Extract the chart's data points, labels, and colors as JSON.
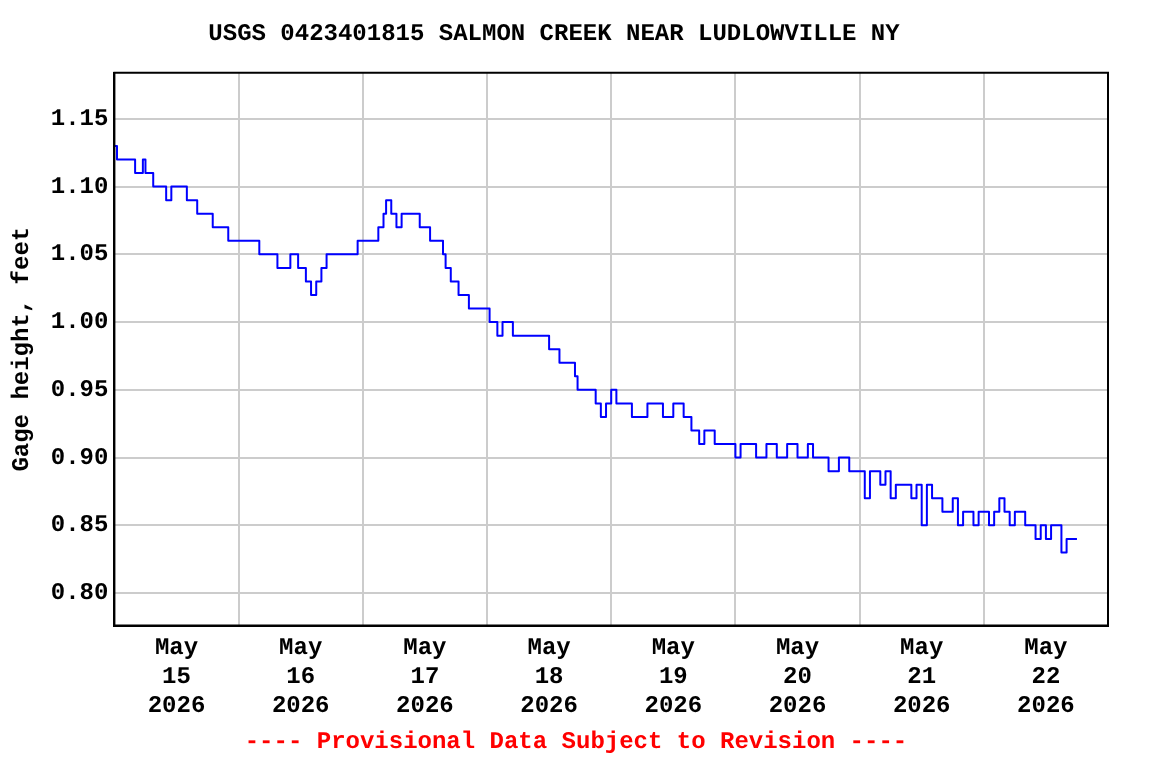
{
  "chart_data": {
    "type": "step",
    "title": "USGS 0423401815 SALMON CREEK NEAR LUDLOWVILLE NY",
    "ylabel": "Gage height, feet",
    "annotations": [
      "---- Provisional Data Subject to Revision ----"
    ],
    "x": [
      "2026-05-15T00:00",
      "2026-05-15T00:30",
      "2026-05-15T03:00",
      "2026-05-15T04:00",
      "2026-05-15T05:30",
      "2026-05-15T06:00",
      "2026-05-15T07:30",
      "2026-05-15T09:00",
      "2026-05-15T10:00",
      "2026-05-15T11:00",
      "2026-05-15T13:30",
      "2026-05-15T14:00",
      "2026-05-15T16:00",
      "2026-05-15T18:00",
      "2026-05-15T19:00",
      "2026-05-15T21:00",
      "2026-05-15T22:00",
      "2026-05-16T00:30",
      "2026-05-16T02:00",
      "2026-05-16T04:00",
      "2026-05-16T06:00",
      "2026-05-16T07:30",
      "2026-05-16T10:00",
      "2026-05-16T11:30",
      "2026-05-16T13:00",
      "2026-05-16T14:00",
      "2026-05-16T15:00",
      "2026-05-16T16:00",
      "2026-05-16T17:00",
      "2026-05-16T22:00",
      "2026-05-16T23:00",
      "2026-05-17T02:00",
      "2026-05-17T03:00",
      "2026-05-17T04:00",
      "2026-05-17T04:30",
      "2026-05-17T05:30",
      "2026-05-17T06:30",
      "2026-05-17T07:30",
      "2026-05-17T10:00",
      "2026-05-17T11:00",
      "2026-05-17T13:00",
      "2026-05-17T15:00",
      "2026-05-17T15:30",
      "2026-05-17T16:00",
      "2026-05-17T17:00",
      "2026-05-17T18:30",
      "2026-05-17T20:30",
      "2026-05-18T00:00",
      "2026-05-18T00:30",
      "2026-05-18T02:00",
      "2026-05-18T03:00",
      "2026-05-18T05:00",
      "2026-05-18T08:00",
      "2026-05-18T12:00",
      "2026-05-18T14:00",
      "2026-05-18T16:00",
      "2026-05-18T17:00",
      "2026-05-18T17:30",
      "2026-05-18T20:00",
      "2026-05-18T21:00",
      "2026-05-18T22:00",
      "2026-05-18T23:00",
      "2026-05-19T00:00",
      "2026-05-19T01:00",
      "2026-05-19T04:00",
      "2026-05-19T07:00",
      "2026-05-19T10:00",
      "2026-05-19T12:00",
      "2026-05-19T14:00",
      "2026-05-19T15:30",
      "2026-05-19T17:00",
      "2026-05-19T18:00",
      "2026-05-19T20:00",
      "2026-05-19T23:00",
      "2026-05-20T00:00",
      "2026-05-20T01:00",
      "2026-05-20T04:00",
      "2026-05-20T06:00",
      "2026-05-20T08:00",
      "2026-05-20T10:00",
      "2026-05-20T12:00",
      "2026-05-20T14:00",
      "2026-05-20T15:00",
      "2026-05-20T17:00",
      "2026-05-20T18:00",
      "2026-05-20T20:00",
      "2026-05-20T22:00",
      "2026-05-21T00:00",
      "2026-05-21T01:00",
      "2026-05-21T02:00",
      "2026-05-21T04:00",
      "2026-05-21T05:00",
      "2026-05-21T06:00",
      "2026-05-21T07:00",
      "2026-05-21T09:00",
      "2026-05-21T10:00",
      "2026-05-21T11:00",
      "2026-05-21T12:00",
      "2026-05-21T13:00",
      "2026-05-21T14:00",
      "2026-05-21T16:00",
      "2026-05-21T18:00",
      "2026-05-21T19:00",
      "2026-05-21T20:00",
      "2026-05-21T22:00",
      "2026-05-21T23:00",
      "2026-05-22T01:00",
      "2026-05-22T02:00",
      "2026-05-22T03:00",
      "2026-05-22T04:00",
      "2026-05-22T05:00",
      "2026-05-22T06:00",
      "2026-05-22T07:00",
      "2026-05-22T08:00",
      "2026-05-22T10:00",
      "2026-05-22T11:00",
      "2026-05-22T12:00",
      "2026-05-22T13:00",
      "2026-05-22T14:00",
      "2026-05-22T15:00",
      "2026-05-22T16:00",
      "2026-05-22T18:00"
    ],
    "series": [
      {
        "color": "#0000ff",
        "values": [
          1.13,
          1.12,
          1.12,
          1.11,
          1.12,
          1.11,
          1.1,
          1.1,
          1.09,
          1.1,
          1.1,
          1.09,
          1.08,
          1.08,
          1.07,
          1.07,
          1.06,
          1.06,
          1.06,
          1.05,
          1.05,
          1.04,
          1.05,
          1.04,
          1.03,
          1.02,
          1.03,
          1.04,
          1.05,
          1.05,
          1.06,
          1.06,
          1.07,
          1.08,
          1.09,
          1.08,
          1.07,
          1.08,
          1.08,
          1.07,
          1.06,
          1.06,
          1.05,
          1.04,
          1.03,
          1.02,
          1.01,
          1.01,
          1.0,
          0.99,
          1.0,
          0.99,
          0.99,
          0.98,
          0.97,
          0.97,
          0.96,
          0.95,
          0.95,
          0.94,
          0.93,
          0.94,
          0.95,
          0.94,
          0.93,
          0.94,
          0.93,
          0.94,
          0.93,
          0.92,
          0.91,
          0.92,
          0.91,
          0.91,
          0.9,
          0.91,
          0.9,
          0.91,
          0.9,
          0.91,
          0.9,
          0.91,
          0.9,
          0.9,
          0.89,
          0.9,
          0.89,
          0.89,
          0.87,
          0.89,
          0.88,
          0.89,
          0.87,
          0.88,
          0.88,
          0.87,
          0.88,
          0.85,
          0.88,
          0.87,
          0.86,
          0.87,
          0.85,
          0.86,
          0.85,
          0.86,
          0.85,
          0.86,
          0.87,
          0.86,
          0.85,
          0.86,
          0.86,
          0.85,
          0.84,
          0.85,
          0.84,
          0.85,
          0.85,
          0.83,
          0.84,
          0.84
        ]
      }
    ],
    "xlim": [
      "2026-05-15T00:00",
      "2026-05-23T00:00"
    ],
    "xticks": [
      {
        "value": "2026-05-15T12:00",
        "label": "May 15 2026"
      },
      {
        "value": "2026-05-16T00:00",
        "label": null
      },
      {
        "value": "2026-05-16T12:00",
        "label": "May 16 2026"
      },
      {
        "value": "2026-05-17T00:00",
        "label": null
      },
      {
        "value": "2026-05-17T12:00",
        "label": "May 17 2026"
      },
      {
        "value": "2026-05-18T00:00",
        "label": null
      },
      {
        "value": "2026-05-18T12:00",
        "label": "May 18 2026"
      },
      {
        "value": "2026-05-19T00:00",
        "label": null
      },
      {
        "value": "2026-05-19T12:00",
        "label": "May 19 2026"
      },
      {
        "value": "2026-05-20T00:00",
        "label": null
      },
      {
        "value": "2026-05-20T12:00",
        "label": "May 20 2026"
      },
      {
        "value": "2026-05-21T00:00",
        "label": null
      },
      {
        "value": "2026-05-21T12:00",
        "label": "May 21 2026"
      },
      {
        "value": "2026-05-22T00:00",
        "label": null
      },
      {
        "value": "2026-05-22T12:00",
        "label": "May 22 2026"
      }
    ],
    "ylim": [
      0.776,
      1.184
    ],
    "yticks": [
      {
        "value": 0.8,
        "label": "0.80"
      },
      {
        "value": 0.85,
        "label": "0.85"
      },
      {
        "value": 0.9,
        "label": "0.90"
      },
      {
        "value": 0.95,
        "label": "0.95"
      },
      {
        "value": 1.0,
        "label": "1.00"
      },
      {
        "value": 1.05,
        "label": "1.05"
      },
      {
        "value": 1.1,
        "label": "1.10"
      },
      {
        "value": 1.15,
        "label": "1.15"
      }
    ],
    "grid": true,
    "legend": false
  }
}
